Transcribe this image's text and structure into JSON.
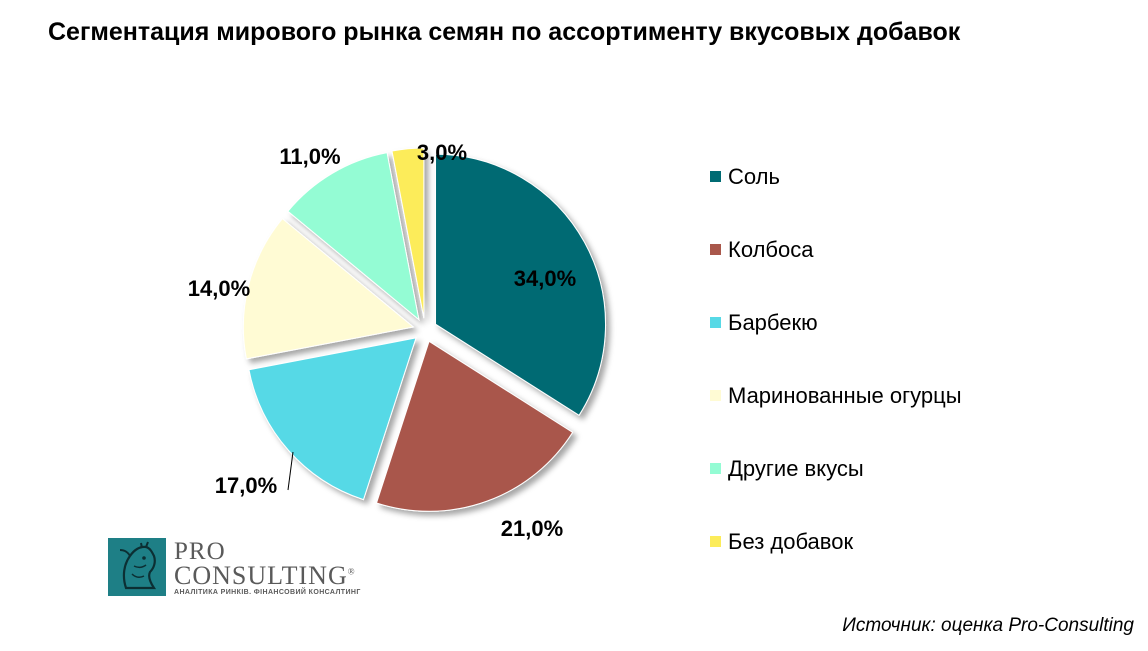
{
  "title": "Сегментация мирового рынка семян по ассортименту вкусовых добавок",
  "chart_data": {
    "type": "pie",
    "title": "Сегментация мирового рынка семян по ассортименту вкусовых добавок",
    "categories": [
      "Соль",
      "Колбоса",
      "Барбекю",
      "Маринованные огурцы",
      "Другие вкусы",
      "Без добавок"
    ],
    "values": [
      34.0,
      21.0,
      17.0,
      14.0,
      11.0,
      3.0
    ],
    "labels": [
      "34,0%",
      "21,0%",
      "17,0%",
      "14,0%",
      "11,0%",
      "3,0%"
    ],
    "colors": [
      "#006b73",
      "#a9574b",
      "#57d9e6",
      "#fffbd4",
      "#94fcd4",
      "#fcec5a"
    ],
    "legend_position": "right",
    "exploded": true,
    "start": "top, clockwise"
  },
  "logo": {
    "line1": "PRO",
    "line2": "CONSULTING",
    "registered": "®",
    "tagline": "АНАЛІТИКА РИНКІВ. ФІНАНСОВИЙ КОНСАЛТИНГ",
    "icon": "horse-head-icon"
  },
  "source": "Источник: оценка Pro-Consulting"
}
